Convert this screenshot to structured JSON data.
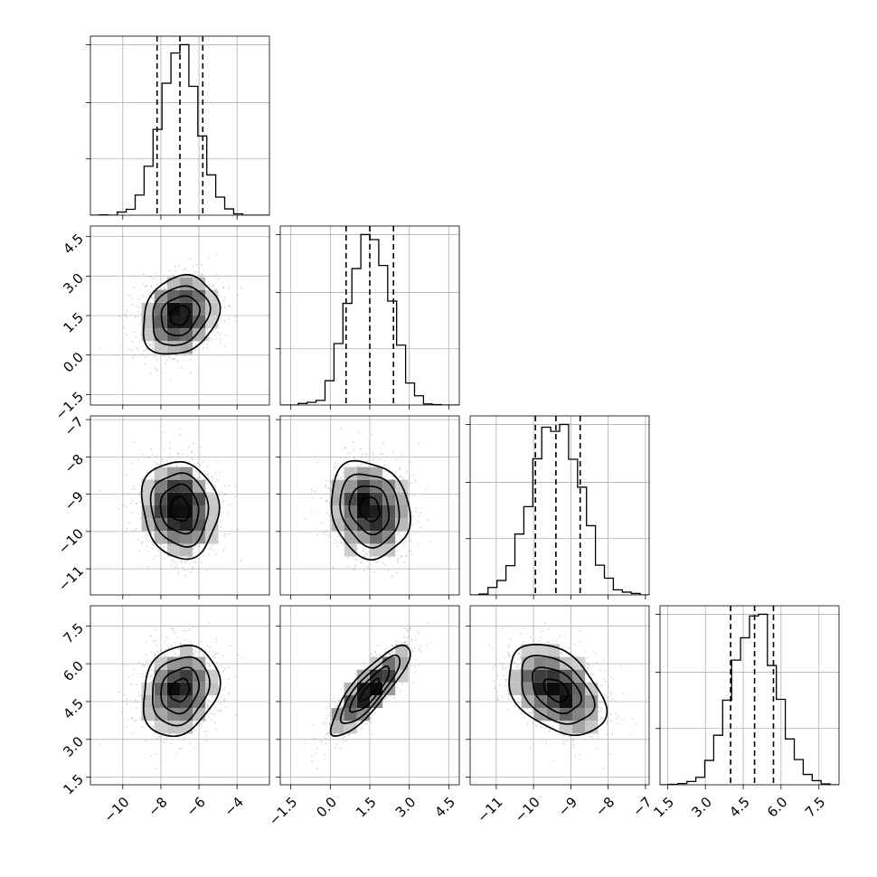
{
  "chart_data": {
    "type": "corner",
    "title": "",
    "parameters": [
      {
        "range": [
          -11.7,
          -2.3
        ],
        "ticks": [
          -10,
          -8,
          -6,
          -4
        ],
        "tick_labels": [
          "−10",
          "−8",
          "−6",
          "−4"
        ],
        "mean": -7.0,
        "sigma": 1.0,
        "quantiles": [
          -8.2,
          -7.0,
          -5.8
        ]
      },
      {
        "range": [
          -1.9,
          4.9
        ],
        "ticks": [
          -1.5,
          0.0,
          1.5,
          3.0,
          4.5
        ],
        "tick_labels": [
          "−1.5",
          "0.0",
          "1.5",
          "3.0",
          "4.5"
        ],
        "mean": 1.5,
        "sigma": 0.75,
        "quantiles": [
          0.6,
          1.5,
          2.4
        ]
      },
      {
        "range": [
          -11.7,
          -6.9
        ],
        "ticks": [
          -11,
          -10,
          -9,
          -8,
          -7
        ],
        "tick_labels": [
          "−11",
          "−10",
          "−9",
          "−8",
          "−7"
        ],
        "mean": -9.4,
        "sigma": 0.65,
        "quantiles": [
          -9.95,
          -9.4,
          -8.75
        ]
      },
      {
        "range": [
          1.2,
          8.3
        ],
        "ticks": [
          1.5,
          3.0,
          4.5,
          6.0,
          7.5
        ],
        "tick_labels": [
          "1.5",
          "3.0",
          "4.5",
          "6.0",
          "7.5"
        ],
        "mean": 4.95,
        "sigma": 0.9,
        "quantiles": [
          4.0,
          4.95,
          5.7
        ]
      }
    ],
    "correlations": [
      [
        1.0,
        0.2,
        -0.1,
        0.2
      ],
      [
        0.2,
        1.0,
        -0.15,
        0.85
      ],
      [
        -0.1,
        -0.15,
        1.0,
        -0.4
      ],
      [
        0.2,
        0.85,
        -0.4,
        1.0
      ]
    ],
    "contour_levels_sigma": [
      0.5,
      1.0,
      1.5,
      2.0
    ],
    "grid": true,
    "legend": "none"
  }
}
